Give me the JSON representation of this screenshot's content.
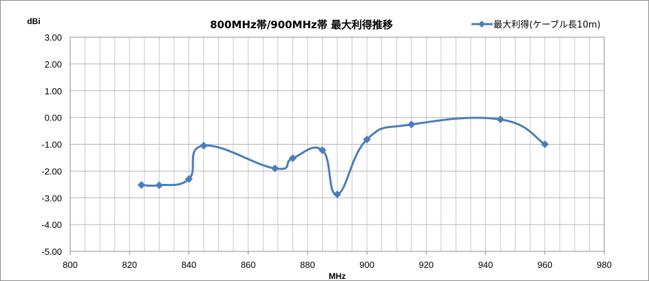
{
  "chart_data": {
    "type": "line",
    "title": "800MHz帯/900MHz帯  最大利得推移",
    "xlabel": "MHz",
    "ylabel": "dBi",
    "xlim": [
      800,
      980
    ],
    "ylim": [
      -5,
      3
    ],
    "x_ticks": [
      800,
      820,
      840,
      860,
      880,
      900,
      920,
      940,
      960,
      980
    ],
    "y_ticks": [
      "3.00",
      "2.00",
      "1.00",
      "0.00",
      "-1.00",
      "-2.00",
      "-3.00",
      "-4.00",
      "-5.00"
    ],
    "grid": true,
    "legend_position": "top-right",
    "series": [
      {
        "name": "最大利得(ケーブル長10m)",
        "color": "#4a7ebb",
        "smooth": true,
        "x": [
          824,
          830,
          840,
          845,
          869,
          875,
          885,
          890,
          900,
          915,
          945,
          960
        ],
        "y": [
          -2.52,
          -2.53,
          -2.3,
          -1.05,
          -1.9,
          -1.52,
          -1.22,
          -2.87,
          -0.82,
          -0.26,
          -0.07,
          -1.0
        ]
      }
    ]
  }
}
